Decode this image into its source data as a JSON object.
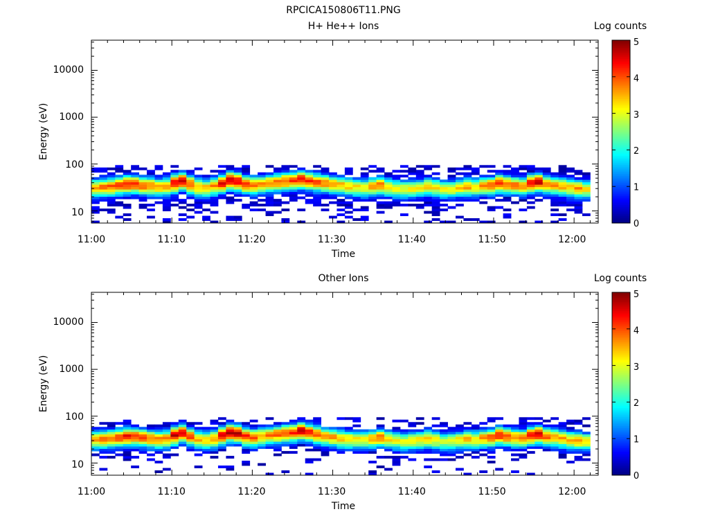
{
  "figure_title": "RPCICA150806T11.PNG",
  "chart_data": [
    {
      "type": "heatmap",
      "title": "H+ He++ Ions",
      "xlabel": "Time",
      "ylabel": "Energy (eV)",
      "x_ticks": [
        "11:00",
        "11:10",
        "11:20",
        "11:30",
        "11:40",
        "11:50",
        "12:00"
      ],
      "y_ticks": [
        "10",
        "100",
        "1000",
        "10000"
      ],
      "y_scale": "log",
      "ylim": [
        5.5,
        44000
      ],
      "xlim": [
        "11:00",
        "12:03"
      ],
      "colorbar": {
        "label": "Log counts",
        "ticks": [
          "0",
          "1",
          "2",
          "3",
          "4",
          "5"
        ],
        "range": [
          0,
          5
        ],
        "colormap": "jet"
      },
      "data_extent": {
        "x": [
          "11:00",
          "12:02"
        ],
        "energy_eV": [
          5.5,
          95
        ]
      },
      "band_center_energy_eV": [
        32,
        33,
        34,
        36,
        38,
        38,
        36,
        35,
        33,
        34,
        40,
        45,
        38,
        33,
        32,
        35,
        40,
        46,
        44,
        38,
        36,
        38,
        40,
        42,
        44,
        46,
        48,
        45,
        42,
        40,
        38,
        36,
        34,
        33,
        32,
        34,
        36,
        33,
        31,
        30,
        31,
        32,
        34,
        32,
        30,
        30,
        32,
        34,
        33,
        35,
        36,
        40,
        38,
        36,
        35,
        40,
        42,
        38,
        36,
        34,
        32,
        31,
        30
      ],
      "band_peak_log_counts": [
        3.6,
        3.8,
        3.9,
        4.1,
        4.3,
        4.2,
        4.0,
        3.8,
        3.6,
        3.7,
        4.5,
        4.6,
        4.0,
        3.5,
        3.4,
        3.7,
        4.4,
        4.6,
        4.5,
        4.2,
        3.9,
        3.6,
        3.8,
        3.9,
        4.0,
        4.1,
        4.4,
        4.2,
        4.0,
        3.8,
        3.6,
        3.5,
        3.3,
        3.2,
        3.2,
        3.5,
        3.8,
        3.3,
        3.2,
        3.0,
        3.2,
        3.2,
        3.4,
        3.2,
        3.0,
        3.1,
        3.3,
        3.6,
        3.3,
        3.7,
        4.0,
        4.3,
        4.0,
        3.8,
        3.7,
        4.5,
        4.6,
        3.9,
        3.6,
        3.5,
        3.4,
        3.6,
        3.3
      ]
    },
    {
      "type": "heatmap",
      "title": "Other Ions",
      "xlabel": "Time",
      "ylabel": "Energy (eV)",
      "x_ticks": [
        "11:00",
        "11:10",
        "11:20",
        "11:30",
        "11:40",
        "11:50",
        "12:00"
      ],
      "y_ticks": [
        "10",
        "100",
        "1000",
        "10000"
      ],
      "y_scale": "log",
      "ylim": [
        5.5,
        44000
      ],
      "xlim": [
        "11:00",
        "12:03"
      ],
      "colorbar": {
        "label": "Log counts",
        "ticks": [
          "0",
          "1",
          "2",
          "3",
          "4",
          "5"
        ],
        "range": [
          0,
          5
        ],
        "colormap": "jet"
      },
      "data_extent": {
        "x": [
          "11:00",
          "12:02"
        ],
        "energy_eV": [
          5.5,
          95
        ]
      },
      "band_center_energy_eV": [
        33,
        33,
        34,
        36,
        38,
        38,
        36,
        34,
        33,
        34,
        40,
        45,
        38,
        33,
        32,
        34,
        40,
        46,
        44,
        38,
        36,
        38,
        40,
        42,
        44,
        46,
        50,
        46,
        42,
        38,
        36,
        34,
        33,
        32,
        32,
        34,
        36,
        33,
        31,
        30,
        31,
        32,
        34,
        32,
        30,
        30,
        32,
        34,
        33,
        35,
        36,
        40,
        38,
        36,
        35,
        40,
        42,
        38,
        36,
        34,
        32,
        31,
        30
      ],
      "band_peak_log_counts": [
        3.6,
        3.8,
        3.9,
        4.2,
        4.4,
        4.2,
        4.0,
        3.8,
        3.6,
        3.7,
        4.6,
        4.6,
        4.0,
        3.5,
        3.3,
        3.6,
        4.4,
        4.7,
        4.6,
        4.2,
        3.9,
        3.6,
        3.8,
        3.9,
        4.0,
        4.2,
        4.6,
        4.2,
        4.0,
        3.8,
        3.6,
        3.5,
        3.3,
        3.2,
        3.2,
        3.5,
        3.8,
        3.3,
        3.1,
        3.0,
        3.2,
        3.2,
        3.4,
        3.2,
        3.0,
        3.1,
        3.3,
        3.6,
        3.3,
        3.7,
        4.0,
        4.3,
        4.0,
        3.8,
        3.7,
        4.5,
        4.6,
        3.9,
        3.6,
        3.5,
        3.4,
        3.6,
        3.3
      ]
    }
  ]
}
